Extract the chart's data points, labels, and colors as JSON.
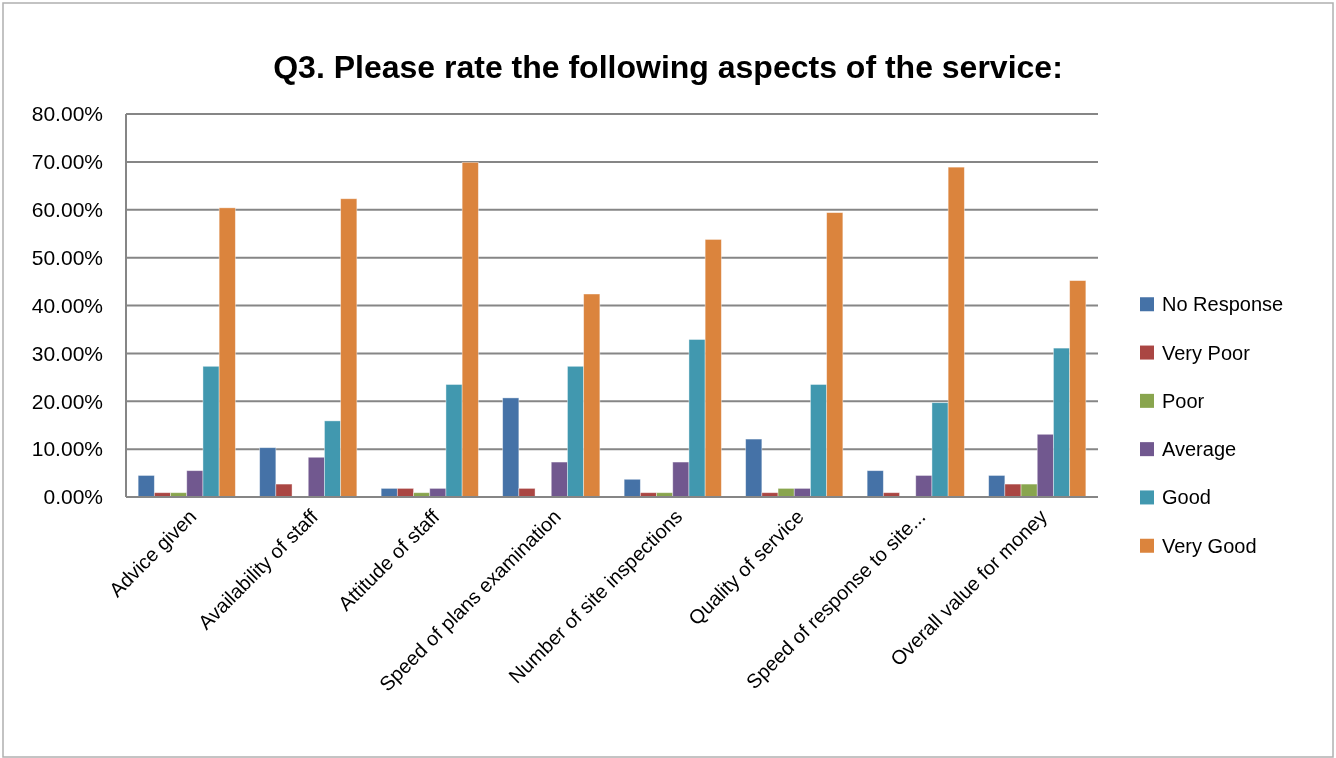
{
  "chart_data": {
    "type": "bar",
    "title": "Q3. Please rate the following aspects of the service:",
    "categories": [
      "Advice given",
      "Availability of staff",
      "Attitude of staff",
      "Speed of plans examination",
      "Number of site inspections",
      "Quality of service",
      "Speed of response to site...",
      "Overall value for money"
    ],
    "series": [
      {
        "name": "No Response",
        "color": "#4572a7",
        "values": [
          4.5,
          10.3,
          1.8,
          20.7,
          3.7,
          12.1,
          5.5,
          4.5
        ]
      },
      {
        "name": "Very Poor",
        "color": "#aa4643",
        "values": [
          0.9,
          2.7,
          1.8,
          1.8,
          0.9,
          0.9,
          0.9,
          2.7
        ]
      },
      {
        "name": "Poor",
        "color": "#89a54e",
        "values": [
          0.9,
          null,
          0.9,
          null,
          0.9,
          1.8,
          null,
          2.7
        ]
      },
      {
        "name": "Average",
        "color": "#71588f",
        "values": [
          5.5,
          8.3,
          1.8,
          7.3,
          7.3,
          1.8,
          4.5,
          13.1
        ]
      },
      {
        "name": "Good",
        "color": "#4198af",
        "values": [
          27.3,
          15.9,
          23.5,
          27.3,
          32.9,
          23.5,
          19.7,
          31.1
        ]
      },
      {
        "name": "Very Good",
        "color": "#db843d",
        "values": [
          60.4,
          62.3,
          69.9,
          42.4,
          53.8,
          59.4,
          68.9,
          45.2
        ]
      }
    ],
    "ylim": [
      0,
      80
    ],
    "yticks": [
      {
        "value": 0,
        "label": "0.00%"
      },
      {
        "value": 10,
        "label": "10.00%"
      },
      {
        "value": 20,
        "label": "20.00%"
      },
      {
        "value": 30,
        "label": "30.00%"
      },
      {
        "value": 40,
        "label": "40.00%"
      },
      {
        "value": 50,
        "label": "50.00%"
      },
      {
        "value": 60,
        "label": "60.00%"
      },
      {
        "value": 70,
        "label": "70.00%"
      },
      {
        "value": 80,
        "label": "80.00%"
      }
    ],
    "grid": "y",
    "legend": "right"
  }
}
